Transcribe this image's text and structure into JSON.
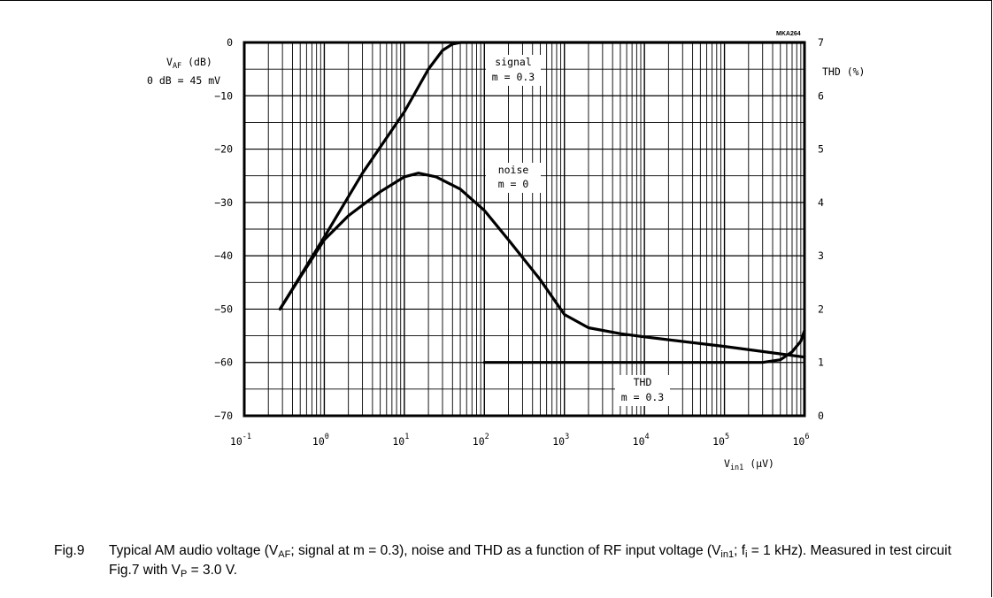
{
  "chart_data": {
    "type": "line",
    "code": "MKA264",
    "x": {
      "label": "V",
      "label_sub": "in1",
      "label_unit": " (µV)",
      "scale": "log",
      "range": [
        0.1,
        1000000
      ],
      "tick_labels": [
        {
          "base": "10",
          "exp": "-1"
        },
        {
          "base": "10",
          "exp": "0"
        },
        {
          "base": "10",
          "exp": "1"
        },
        {
          "base": "10",
          "exp": "2"
        },
        {
          "base": "10",
          "exp": "3"
        },
        {
          "base": "10",
          "exp": "4"
        },
        {
          "base": "10",
          "exp": "5"
        },
        {
          "base": "10",
          "exp": "6"
        }
      ]
    },
    "y_left": {
      "label": "V",
      "label_sub": "AF",
      "label_unit": " (dB)",
      "note": "0 dB = 45 mV",
      "range": [
        -70,
        0
      ],
      "tick_labels": [
        "0",
        "−10",
        "−20",
        "−30",
        "−40",
        "−50",
        "−60",
        "−70"
      ]
    },
    "y_right": {
      "label": "THD (%)",
      "range": [
        0,
        7
      ],
      "tick_labels": [
        "7",
        "6",
        "5",
        "4",
        "3",
        "2",
        "1",
        "0"
      ]
    },
    "grid": true,
    "series": [
      {
        "name": "signal",
        "label_line1": "signal",
        "label_line2": "m = 0.3",
        "axis": "left",
        "x": [
          0.28,
          1,
          3,
          10,
          20,
          30,
          40,
          50,
          1000000
        ],
        "y": [
          -50,
          -36.5,
          -24.5,
          -13,
          -5,
          -1.5,
          -0.3,
          0,
          0
        ]
      },
      {
        "name": "noise",
        "label_line1": "noise",
        "label_line2": "m = 0",
        "axis": "left",
        "x": [
          0.28,
          0.5,
          1,
          2,
          5,
          10,
          15,
          25,
          50,
          100,
          200,
          500,
          1000,
          2000,
          5000,
          10000,
          100000,
          1000000
        ],
        "y": [
          -50,
          -44,
          -37,
          -32.5,
          -28,
          -25.2,
          -24.5,
          -25.2,
          -27.5,
          -31.5,
          -37,
          -44.5,
          -51,
          -53.5,
          -54.6,
          -55.2,
          -57,
          -59
        ]
      },
      {
        "name": "THD",
        "label_line1": "THD",
        "label_line2": "m = 0.3",
        "axis": "right",
        "x": [
          100,
          1000,
          10000,
          100000,
          300000,
          500000,
          700000,
          900000,
          1000000
        ],
        "y": [
          1.0,
          1.0,
          1.0,
          1.0,
          1.0,
          1.05,
          1.2,
          1.4,
          1.6
        ]
      }
    ]
  },
  "caption": {
    "fig": "Fig.9",
    "p1": "Typical AM audio voltage (V",
    "s1": "AF",
    "p2": "; signal at m = 0.3), noise and THD as a function of RF input voltage (V",
    "s2": "in1",
    "p3": "; f",
    "s3": "i",
    "p4": " = 1 kHz). Measured in test circuit Fig.7 with V",
    "s4": "P",
    "p5": " = 3.0 V."
  }
}
